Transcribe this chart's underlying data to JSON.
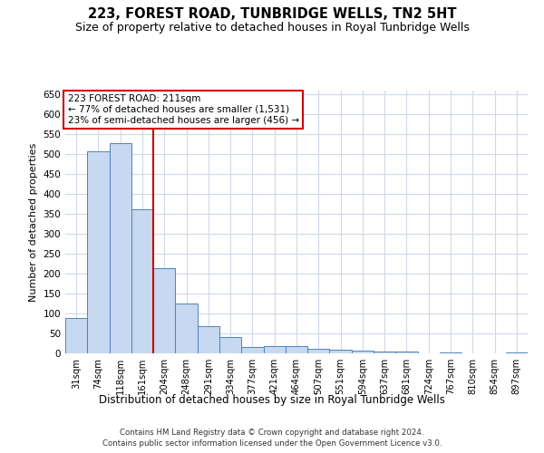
{
  "title": "223, FOREST ROAD, TUNBRIDGE WELLS, TN2 5HT",
  "subtitle": "Size of property relative to detached houses in Royal Tunbridge Wells",
  "xlabel": "Distribution of detached houses by size in Royal Tunbridge Wells",
  "ylabel": "Number of detached properties",
  "footer1": "Contains HM Land Registry data © Crown copyright and database right 2024.",
  "footer2": "Contains public sector information licensed under the Open Government Licence v3.0.",
  "annotation_line1": "223 FOREST ROAD: 211sqm",
  "annotation_line2": "← 77% of detached houses are smaller (1,531)",
  "annotation_line3": "23% of semi-detached houses are larger (456) →",
  "categories": [
    "31sqm",
    "74sqm",
    "118sqm",
    "161sqm",
    "204sqm",
    "248sqm",
    "291sqm",
    "334sqm",
    "377sqm",
    "421sqm",
    "464sqm",
    "507sqm",
    "551sqm",
    "594sqm",
    "637sqm",
    "681sqm",
    "724sqm",
    "767sqm",
    "810sqm",
    "854sqm",
    "897sqm"
  ],
  "values": [
    88,
    507,
    528,
    363,
    215,
    125,
    68,
    42,
    16,
    19,
    19,
    11,
    10,
    7,
    4,
    4,
    1,
    3,
    1,
    1,
    2
  ],
  "bar_color": "#c6d9f0",
  "bar_edge_color": "#4f81bd",
  "vline_color": "#cc0000",
  "vline_index": 4,
  "annotation_box_color": "#cc0000",
  "ylim": [
    0,
    660
  ],
  "yticks": [
    0,
    50,
    100,
    150,
    200,
    250,
    300,
    350,
    400,
    450,
    500,
    550,
    600,
    650
  ],
  "background_color": "#ffffff",
  "grid_color": "#d0d8e8",
  "title_fontsize": 10.5,
  "subtitle_fontsize": 9
}
